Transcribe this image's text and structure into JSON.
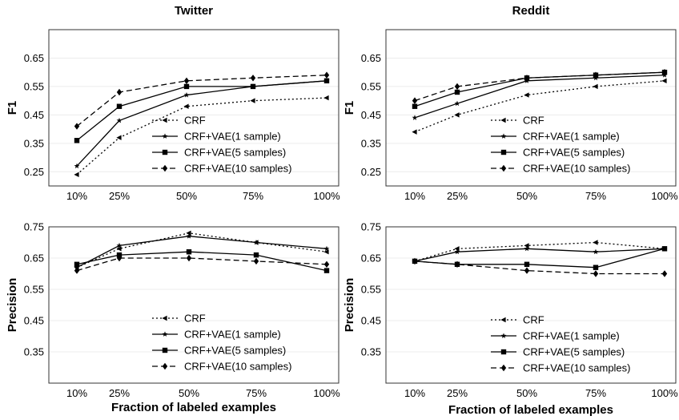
{
  "figure": {
    "xlabel": "Fraction of labeled examples"
  },
  "chart_data": [
    {
      "type": "line",
      "title": "Twitter",
      "xlabel": "",
      "ylabel": "F1",
      "x": [
        "10%",
        "25%",
        "50%",
        "75%",
        "100%"
      ],
      "yticks": [
        "0.25",
        "0.35",
        "0.45",
        "0.55",
        "0.65"
      ],
      "ylim": [
        0.2,
        0.75
      ],
      "grid": true,
      "legend": "bottom-right",
      "series": [
        {
          "name": "CRF",
          "values": [
            0.24,
            0.37,
            0.48,
            0.5,
            0.51
          ]
        },
        {
          "name": "CRF+VAE(1 sample)",
          "values": [
            0.27,
            0.43,
            0.52,
            0.55,
            0.57
          ]
        },
        {
          "name": "CRF+VAE(5 samples)",
          "values": [
            0.36,
            0.48,
            0.55,
            0.55,
            0.57
          ]
        },
        {
          "name": "CRF+VAE(10 samples)",
          "values": [
            0.41,
            0.53,
            0.57,
            0.58,
            0.59
          ]
        }
      ]
    },
    {
      "type": "line",
      "title": "Reddit",
      "xlabel": "",
      "ylabel": "F1",
      "x": [
        "10%",
        "25%",
        "50%",
        "75%",
        "100%"
      ],
      "yticks": [
        "0.25",
        "0.35",
        "0.45",
        "0.55",
        "0.65"
      ],
      "ylim": [
        0.2,
        0.75
      ],
      "grid": true,
      "legend": "bottom-right",
      "series": [
        {
          "name": "CRF",
          "values": [
            0.39,
            0.45,
            0.52,
            0.55,
            0.57
          ]
        },
        {
          "name": "CRF+VAE(1 sample)",
          "values": [
            0.44,
            0.49,
            0.57,
            0.58,
            0.59
          ]
        },
        {
          "name": "CRF+VAE(5 samples)",
          "values": [
            0.48,
            0.53,
            0.58,
            0.59,
            0.6
          ]
        },
        {
          "name": "CRF+VAE(10 samples)",
          "values": [
            0.5,
            0.55,
            0.58,
            0.59,
            0.6
          ]
        }
      ]
    },
    {
      "type": "line",
      "title": "",
      "xlabel": "Fraction of labeled examples",
      "ylabel": "Precision",
      "x": [
        "10%",
        "25%",
        "50%",
        "75%",
        "100%"
      ],
      "yticks": [
        "0.35",
        "0.45",
        "0.55",
        "0.65",
        "0.75"
      ],
      "ylim": [
        0.25,
        0.75
      ],
      "grid": true,
      "legend": "bottom-right",
      "series": [
        {
          "name": "CRF",
          "values": [
            0.62,
            0.68,
            0.73,
            0.7,
            0.67
          ]
        },
        {
          "name": "CRF+VAE(1 sample)",
          "values": [
            0.62,
            0.69,
            0.72,
            0.7,
            0.68
          ]
        },
        {
          "name": "CRF+VAE(5 samples)",
          "values": [
            0.63,
            0.66,
            0.67,
            0.66,
            0.61
          ]
        },
        {
          "name": "CRF+VAE(10 samples)",
          "values": [
            0.61,
            0.65,
            0.65,
            0.64,
            0.63
          ]
        }
      ]
    },
    {
      "type": "line",
      "title": "",
      "xlabel": "Fraction of labeled examples",
      "ylabel": "Precision",
      "x": [
        "10%",
        "25%",
        "50%",
        "75%",
        "100%"
      ],
      "yticks": [
        "0.35",
        "0.45",
        "0.55",
        "0.65",
        "0.75"
      ],
      "ylim": [
        0.25,
        0.75
      ],
      "grid": true,
      "legend": "bottom-right",
      "series": [
        {
          "name": "CRF",
          "values": [
            0.64,
            0.68,
            0.69,
            0.7,
            0.68
          ]
        },
        {
          "name": "CRF+VAE(1 sample)",
          "values": [
            0.64,
            0.67,
            0.68,
            0.67,
            0.68
          ]
        },
        {
          "name": "CRF+VAE(5 samples)",
          "values": [
            0.64,
            0.63,
            0.63,
            0.62,
            0.68
          ]
        },
        {
          "name": "CRF+VAE(10 samples)",
          "values": [
            0.64,
            0.63,
            0.61,
            0.6,
            0.6
          ]
        }
      ]
    }
  ]
}
